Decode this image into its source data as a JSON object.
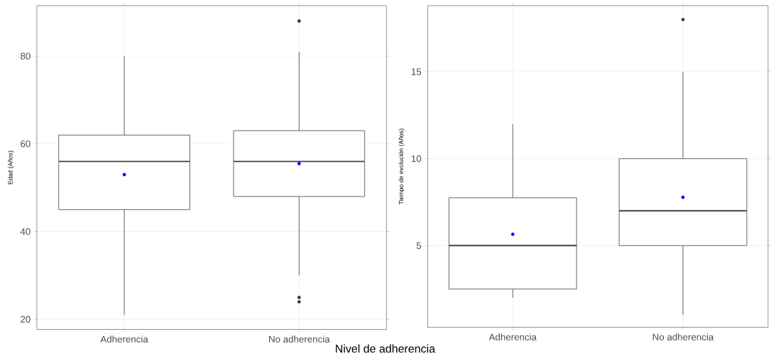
{
  "chart_data": [
    {
      "type": "box",
      "ylabel": "Edad (Años)",
      "xlabel": "Nivel de adherencia",
      "categories": [
        "Adherencia",
        "No adherencia"
      ],
      "boxes": [
        {
          "low": 21,
          "q1": 45,
          "median": 56,
          "q3": 62,
          "high": 80,
          "mean": 53
        },
        {
          "low": 30,
          "q1": 48,
          "median": 56,
          "q3": 63,
          "high": 81,
          "mean": 55.5,
          "outliers": [
            88,
            25,
            24
          ]
        }
      ],
      "ylim": [
        17.7,
        91.5
      ],
      "yticks": [
        20,
        40,
        60,
        80
      ],
      "grid": true
    },
    {
      "type": "box",
      "ylabel": "Tiempo de evolución (Años)",
      "categories": [
        "Adherencia",
        "No adherencia"
      ],
      "boxes": [
        {
          "low": 2,
          "q1": 2.5,
          "median": 5,
          "q3": 7.75,
          "high": 12,
          "mean": 5.65
        },
        {
          "low": 1,
          "q1": 5,
          "median": 7,
          "q3": 10,
          "high": 15,
          "mean": 7.78,
          "outliers": [
            18
          ]
        }
      ],
      "ylim": [
        0.3,
        18.8
      ],
      "yticks": [
        5,
        10,
        15
      ],
      "grid": true
    }
  ]
}
